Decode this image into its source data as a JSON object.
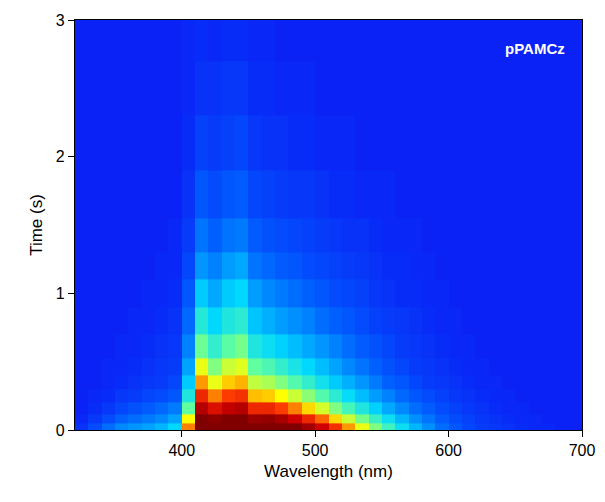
{
  "chart_data": {
    "type": "heatmap",
    "annotations": [
      "pPAMCz"
    ],
    "xlabel": "Wavelength (nm)",
    "ylabel": "Time (s)",
    "xlim": [
      320,
      700
    ],
    "ylim": [
      0,
      3
    ],
    "xticks": [
      400,
      500,
      600,
      700
    ],
    "yticks": [
      0,
      1,
      2,
      3
    ],
    "x": [
      325,
      335,
      345,
      355,
      365,
      375,
      385,
      395,
      405,
      415,
      425,
      435,
      445,
      455,
      465,
      475,
      485,
      495,
      505,
      515,
      525,
      535,
      545,
      555,
      565,
      575,
      585,
      595,
      605,
      615,
      625,
      635,
      645,
      655,
      665,
      675,
      685,
      695
    ],
    "y": [
      0.025,
      0.075,
      0.15,
      0.25,
      0.35,
      0.45,
      0.6,
      0.8,
      1.0,
      1.2,
      1.4,
      1.7,
      2.1,
      2.5,
      2.9
    ],
    "z": [
      [
        3,
        8,
        14,
        18,
        20,
        22,
        25,
        30,
        70,
        100,
        100,
        100,
        100,
        100,
        100,
        100,
        100,
        95,
        88,
        78,
        68,
        58,
        48,
        40,
        32,
        25,
        19,
        14,
        10,
        7,
        5,
        4,
        3,
        2,
        1,
        1,
        0,
        0
      ],
      [
        1,
        4,
        8,
        12,
        14,
        16,
        18,
        22,
        60,
        100,
        98,
        100,
        100,
        96,
        97,
        94,
        88,
        80,
        72,
        63,
        55,
        47,
        39,
        32,
        25,
        19,
        15,
        11,
        8,
        6,
        4,
        3,
        2,
        1,
        1,
        0,
        0,
        0
      ],
      [
        0,
        2,
        4,
        7,
        9,
        11,
        13,
        16,
        45,
        92,
        85,
        90,
        92,
        80,
        80,
        76,
        70,
        63,
        56,
        48,
        41,
        35,
        29,
        23,
        18,
        14,
        11,
        8,
        6,
        4,
        3,
        2,
        1,
        1,
        0,
        0,
        0,
        0
      ],
      [
        0,
        1,
        2,
        4,
        5,
        7,
        8,
        10,
        35,
        80,
        70,
        76,
        78,
        65,
        64,
        60,
        55,
        49,
        43,
        37,
        31,
        26,
        21,
        17,
        13,
        10,
        8,
        6,
        4,
        3,
        2,
        1,
        1,
        0,
        0,
        0,
        0,
        0
      ],
      [
        0,
        0,
        1,
        2,
        3,
        4,
        5,
        7,
        28,
        68,
        58,
        64,
        66,
        54,
        52,
        48,
        43,
        38,
        33,
        28,
        24,
        20,
        16,
        12,
        10,
        7,
        5,
        4,
        3,
        2,
        1,
        1,
        0,
        0,
        0,
        0,
        0,
        0
      ],
      [
        0,
        0,
        1,
        1,
        2,
        3,
        4,
        5,
        22,
        58,
        48,
        55,
        57,
        45,
        42,
        38,
        34,
        30,
        26,
        22,
        18,
        15,
        12,
        9,
        7,
        5,
        4,
        3,
        2,
        1,
        1,
        0,
        0,
        0,
        0,
        0,
        0,
        0
      ],
      [
        0,
        0,
        0,
        1,
        1,
        2,
        3,
        4,
        17,
        46,
        38,
        44,
        47,
        35,
        32,
        29,
        26,
        23,
        20,
        17,
        14,
        11,
        9,
        7,
        5,
        4,
        3,
        2,
        1,
        1,
        0,
        0,
        0,
        0,
        0,
        0,
        0,
        0
      ],
      [
        0,
        0,
        0,
        0,
        1,
        1,
        2,
        3,
        13,
        36,
        30,
        35,
        37,
        27,
        24,
        21,
        19,
        17,
        14,
        12,
        10,
        8,
        6,
        5,
        4,
        3,
        2,
        1,
        1,
        0,
        0,
        0,
        0,
        0,
        0,
        0,
        0,
        0
      ],
      [
        0,
        0,
        0,
        0,
        0,
        1,
        1,
        2,
        10,
        28,
        23,
        28,
        30,
        21,
        18,
        16,
        14,
        12,
        10,
        8,
        7,
        6,
        4,
        3,
        2,
        2,
        1,
        1,
        0,
        0,
        0,
        0,
        0,
        0,
        0,
        0,
        0,
        0
      ],
      [
        0,
        0,
        0,
        0,
        0,
        0,
        1,
        1,
        7,
        20,
        17,
        21,
        23,
        15,
        13,
        11,
        10,
        8,
        7,
        6,
        5,
        4,
        3,
        2,
        2,
        1,
        1,
        0,
        0,
        0,
        0,
        0,
        0,
        0,
        0,
        0,
        0,
        0
      ],
      [
        0,
        0,
        0,
        0,
        0,
        0,
        0,
        1,
        5,
        15,
        12,
        15,
        16,
        11,
        9,
        8,
        7,
        6,
        5,
        4,
        3,
        3,
        2,
        1,
        1,
        1,
        0,
        0,
        0,
        0,
        0,
        0,
        0,
        0,
        0,
        0,
        0,
        0
      ],
      [
        0,
        0,
        0,
        0,
        0,
        0,
        0,
        0,
        3,
        10,
        8,
        10,
        11,
        7,
        6,
        5,
        4,
        4,
        3,
        2,
        2,
        1,
        1,
        1,
        0,
        0,
        0,
        0,
        0,
        0,
        0,
        0,
        0,
        0,
        0,
        0,
        0,
        0
      ],
      [
        0,
        0,
        0,
        0,
        0,
        0,
        0,
        0,
        2,
        6,
        5,
        6,
        7,
        4,
        3,
        3,
        2,
        2,
        1,
        1,
        1,
        0,
        0,
        0,
        0,
        0,
        0,
        0,
        0,
        0,
        0,
        0,
        0,
        0,
        0,
        0,
        0,
        0
      ],
      [
        0,
        0,
        0,
        0,
        0,
        0,
        0,
        0,
        1,
        3,
        3,
        4,
        4,
        2,
        2,
        1,
        1,
        1,
        0,
        0,
        0,
        0,
        0,
        0,
        0,
        0,
        0,
        0,
        0,
        0,
        0,
        0,
        0,
        0,
        0,
        0,
        0,
        0
      ],
      [
        0,
        0,
        0,
        0,
        0,
        0,
        0,
        0,
        1,
        2,
        1,
        2,
        2,
        1,
        1,
        0,
        0,
        0,
        0,
        0,
        0,
        0,
        0,
        0,
        0,
        0,
        0,
        0,
        0,
        0,
        0,
        0,
        0,
        0,
        0,
        0,
        0,
        0
      ]
    ]
  }
}
